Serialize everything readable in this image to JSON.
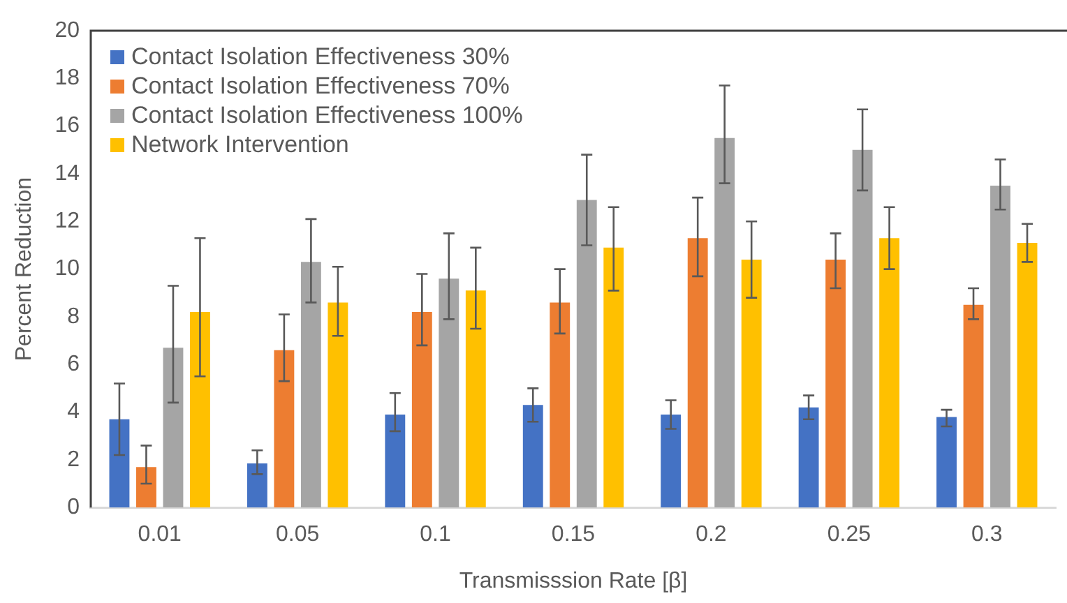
{
  "chart_data": {
    "type": "bar",
    "xlabel": "Transmisssion Rate [β]",
    "ylabel": "Percent Reduction",
    "categories": [
      "0.01",
      "0.05",
      "0.1",
      "0.15",
      "0.2",
      "0.25",
      "0.3"
    ],
    "series": [
      {
        "name": "Contact Isolation Effectiveness 30%",
        "color": "#4472c4",
        "values": [
          3.7,
          1.85,
          3.9,
          4.3,
          3.9,
          4.2,
          3.8
        ],
        "errors": [
          [
            2.2,
            5.2
          ],
          [
            1.4,
            2.4
          ],
          [
            3.2,
            4.8
          ],
          [
            3.6,
            5.0
          ],
          [
            3.3,
            4.5
          ],
          [
            3.7,
            4.7
          ],
          [
            3.4,
            4.1
          ]
        ]
      },
      {
        "name": "Contact Isolation Effectiveness 70%",
        "color": "#ed7d31",
        "values": [
          1.7,
          6.6,
          8.2,
          8.6,
          11.3,
          10.4,
          8.5
        ],
        "errors": [
          [
            1.0,
            2.6
          ],
          [
            5.3,
            8.1
          ],
          [
            6.8,
            9.8
          ],
          [
            7.3,
            10.0
          ],
          [
            9.7,
            13.0
          ],
          [
            9.2,
            11.5
          ],
          [
            7.9,
            9.2
          ]
        ]
      },
      {
        "name": "Contact Isolation Effectiveness 100%",
        "color": "#a5a5a5",
        "values": [
          6.7,
          10.3,
          9.6,
          12.9,
          15.5,
          15.0,
          13.5
        ],
        "errors": [
          [
            4.4,
            9.3
          ],
          [
            8.6,
            12.1
          ],
          [
            7.9,
            11.5
          ],
          [
            11.0,
            14.8
          ],
          [
            13.6,
            17.7
          ],
          [
            13.3,
            16.7
          ],
          [
            12.5,
            14.6
          ]
        ]
      },
      {
        "name": "Network Intervention",
        "color": "#ffc000",
        "values": [
          8.2,
          8.6,
          9.1,
          10.9,
          10.4,
          11.3,
          11.1
        ],
        "errors": [
          [
            5.5,
            11.3
          ],
          [
            7.2,
            10.1
          ],
          [
            7.5,
            10.9
          ],
          [
            9.1,
            12.6
          ],
          [
            8.8,
            12.0
          ],
          [
            10.0,
            12.6
          ],
          [
            10.3,
            11.9
          ]
        ]
      }
    ],
    "ylim": [
      0,
      20
    ],
    "yticks": [
      0,
      2,
      4,
      6,
      8,
      10,
      12,
      14,
      16,
      18,
      20
    ],
    "grid": false,
    "legend": "top left"
  }
}
